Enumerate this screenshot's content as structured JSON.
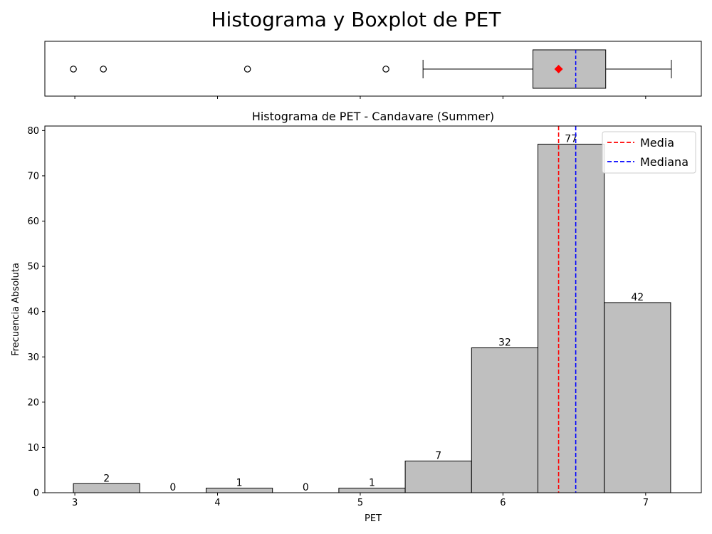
{
  "figure_title": "Histograma y Boxplot de PET",
  "chart_data": [
    {
      "type": "boxplot",
      "variable": "PET",
      "whisker_low": 5.44,
      "q1": 6.21,
      "median": 6.51,
      "q3": 6.72,
      "whisker_high": 7.18,
      "mean": 6.39,
      "outliers": [
        2.99,
        3.2,
        4.21,
        5.18
      ],
      "xlim": [
        2.79,
        7.39
      ],
      "xticks": [
        3,
        4,
        5,
        6,
        7
      ]
    },
    {
      "type": "bar",
      "subtype": "histogram",
      "title": "Histograma de PET - Candavare (Summer)",
      "xlabel": "PET",
      "ylabel": "Frecuencia Absoluta",
      "bin_edges": [
        2.99,
        3.455,
        3.92,
        4.385,
        4.85,
        5.315,
        5.78,
        6.245,
        6.71,
        7.175
      ],
      "values": [
        2,
        0,
        1,
        0,
        1,
        7,
        32,
        77,
        42
      ],
      "bar_labels": [
        "2",
        "0",
        "1",
        "0",
        "1",
        "7",
        "32",
        "77",
        "42"
      ],
      "xlim": [
        2.79,
        7.39
      ],
      "ylim": [
        0,
        81
      ],
      "xticks": [
        3,
        4,
        5,
        6,
        7
      ],
      "yticks": [
        0,
        10,
        20,
        30,
        40,
        50,
        60,
        70,
        80
      ],
      "lines": [
        {
          "name": "Media",
          "x": 6.39,
          "color": "#ff0000",
          "style": "dashed"
        },
        {
          "name": "Mediana",
          "x": 6.51,
          "color": "#0000ff",
          "style": "dashed"
        }
      ],
      "legend_position": "top-right",
      "grid": false
    }
  ],
  "colors": {
    "bar_fill": "#bfbfbf",
    "edge": "#000000",
    "mean": "#ff0000",
    "median": "#0000ff"
  }
}
